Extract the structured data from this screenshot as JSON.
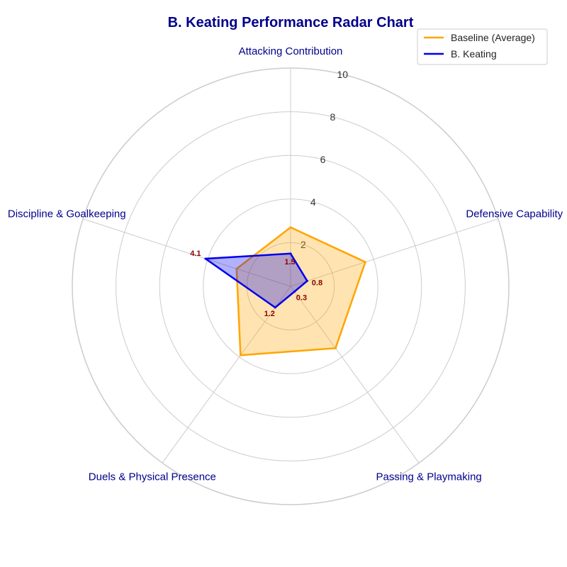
{
  "chart_data": {
    "type": "radar",
    "title": "B. Keating Performance Radar Chart",
    "categories": [
      "Attacking Contribution",
      "Defensive Capability",
      "Passing & Playmaking",
      "Duels & Physical Presence",
      "Discipline & Goalkeeping"
    ],
    "rlim": [
      0,
      10
    ],
    "rticks": [
      2,
      4,
      6,
      8,
      10
    ],
    "series": [
      {
        "name": "Baseline (Average)",
        "values": [
          2.7,
          3.6,
          3.5,
          3.9,
          2.6
        ],
        "color": "#FFA500",
        "fill_opacity": 0.3
      },
      {
        "name": "B. Keating",
        "values": [
          1.5,
          0.8,
          0.3,
          1.2,
          4.1
        ],
        "color": "#0000EE",
        "fill_opacity": 0.3
      }
    ],
    "data_labels": [
      "1.5",
      "0.8",
      "0.3",
      "1.2",
      "4.1"
    ],
    "grid": true,
    "legend": "top-right"
  },
  "colors": {
    "title": "#00008B",
    "axis_label": "#00008B",
    "data_label": "#8B0000",
    "grid": "#CCCCCC"
  }
}
